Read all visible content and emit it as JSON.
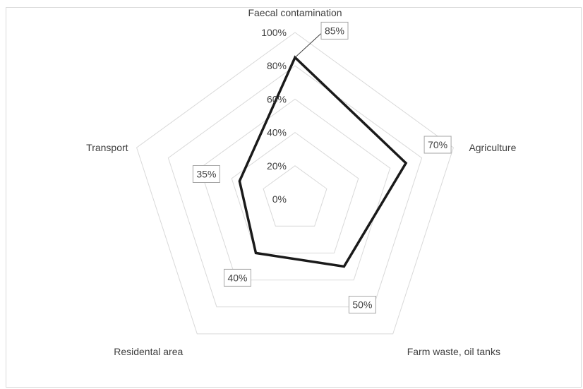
{
  "chart_data": {
    "type": "radar",
    "categories": [
      "Faecal contamination",
      "Agriculture",
      "Farm waste, oil tanks",
      "Residental area",
      "Transport"
    ],
    "series": [
      {
        "values": [
          85,
          70,
          50,
          40,
          35
        ],
        "color": "#1a1a1a"
      }
    ],
    "data_labels": [
      "85%",
      "70%",
      "50%",
      "40%",
      "35%"
    ],
    "r_ticks": [
      0,
      20,
      40,
      60,
      80,
      100
    ],
    "r_tick_labels": [
      "0%",
      "20%",
      "40%",
      "60%",
      "80%",
      "100%"
    ],
    "rlim": [
      0,
      100
    ],
    "grid": true,
    "legend": "none",
    "colors": {
      "grid": "#d9d9d9",
      "label_box": "#a6a6a6",
      "text": "#404040"
    }
  }
}
